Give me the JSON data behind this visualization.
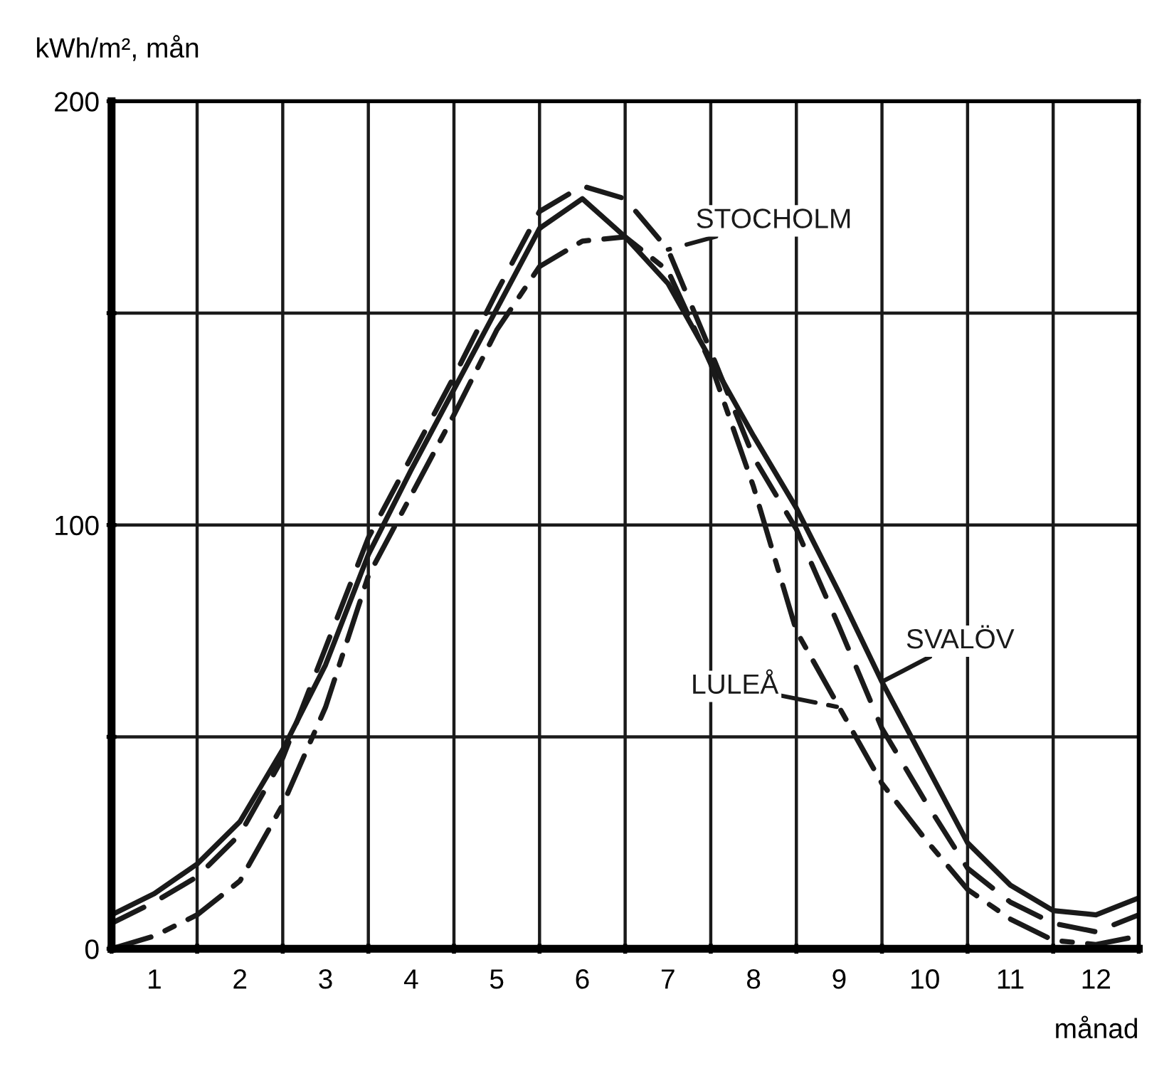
{
  "chart_data": {
    "type": "line",
    "ylabel": "kWh/m², mån",
    "xlabel": "månad",
    "x": [
      0,
      0.5,
      1,
      1.5,
      2,
      2.5,
      3,
      3.5,
      4,
      4.5,
      5,
      5.5,
      6,
      6.5,
      7,
      7.5,
      8,
      8.5,
      9,
      9.5,
      10,
      10.5,
      11,
      11.5,
      12
    ],
    "series": [
      {
        "name": "SVALÖV",
        "color": "#1a1a1a",
        "line_style": "solid",
        "values": [
          8,
          13,
          20,
          30,
          47,
          67,
          93,
          113,
          132,
          151,
          170,
          177,
          168,
          157,
          139,
          121,
          104,
          84,
          63,
          44,
          25,
          15,
          9,
          8,
          12
        ]
      },
      {
        "name": "LULEÅ",
        "color": "#1a1a1a",
        "line_style": "dashdot",
        "values": [
          0,
          3,
          8,
          16,
          34,
          57,
          88,
          107,
          126,
          146,
          161,
          167,
          168,
          160,
          138,
          109,
          75,
          57,
          39,
          26,
          14,
          7,
          2,
          1,
          3
        ]
      },
      {
        "name": "STOCHOLM",
        "color": "#1a1a1a",
        "line_style": "dashed",
        "values": [
          6,
          11,
          17,
          27,
          45,
          71,
          97,
          116,
          135,
          155,
          174,
          180,
          177,
          165,
          141,
          116,
          99,
          76,
          52,
          35,
          19,
          11,
          6,
          4,
          8
        ]
      }
    ],
    "xlim": [
      0,
      12
    ],
    "xticks": [
      {
        "value": 0,
        "label": null
      },
      {
        "value": 0.5,
        "label": "1"
      },
      {
        "value": 1,
        "label": null
      },
      {
        "value": 1.5,
        "label": "2"
      },
      {
        "value": 2,
        "label": null
      },
      {
        "value": 2.5,
        "label": "3"
      },
      {
        "value": 3,
        "label": null
      },
      {
        "value": 3.5,
        "label": "4"
      },
      {
        "value": 4,
        "label": null
      },
      {
        "value": 4.5,
        "label": "5"
      },
      {
        "value": 5,
        "label": null
      },
      {
        "value": 5.5,
        "label": "6"
      },
      {
        "value": 6,
        "label": null
      },
      {
        "value": 6.5,
        "label": "7"
      },
      {
        "value": 7,
        "label": null
      },
      {
        "value": 7.5,
        "label": "8"
      },
      {
        "value": 8,
        "label": null
      },
      {
        "value": 8.5,
        "label": "9"
      },
      {
        "value": 9,
        "label": null
      },
      {
        "value": 9.5,
        "label": "10"
      },
      {
        "value": 10,
        "label": null
      },
      {
        "value": 10.5,
        "label": "11"
      },
      {
        "value": 11,
        "label": null
      },
      {
        "value": 11.5,
        "label": "12"
      },
      {
        "value": 12,
        "label": null
      }
    ],
    "ylim": [
      0,
      200
    ],
    "yticks": [
      0,
      {
        "value": 50,
        "label": null
      },
      100,
      {
        "value": 150,
        "label": null
      },
      200
    ],
    "grid": true,
    "legend": false,
    "marker": "none"
  }
}
